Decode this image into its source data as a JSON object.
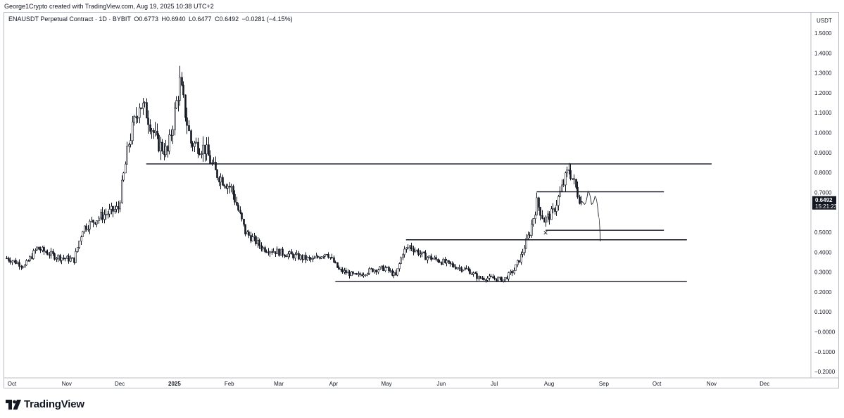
{
  "header": {
    "credit": "George1Crypto created with TradingView.com, Aug 19, 2025 10:38 UTC+2",
    "symbol": "ENAUSDT Perpetual Contract · 1D · BYBIT",
    "ohlc": {
      "open": "O0.6773",
      "high": "H0.6940",
      "low": "L0.6477",
      "close": "C0.6492",
      "change": "−0.0281 (−4.15%)"
    }
  },
  "footer": {
    "brand": "TradingView"
  },
  "price_badge": {
    "price": "0.6492",
    "countdown": "15:21:23",
    "color": "#131722"
  },
  "colors": {
    "candle": "#131722",
    "line": "#131722",
    "grid": "#f0f3fa",
    "axis_text": "#131722"
  },
  "icons": [
    "tradingview-logo-icon"
  ],
  "chart_data": {
    "type": "candlestick",
    "title": "ENAUSDT Perpetual Contract · 1D · BYBIT",
    "xlabel": "",
    "ylabel": "",
    "y_unit": "USDT",
    "ylim": [
      -0.2,
      1.5
    ],
    "y_ticks": [
      "1.5000",
      "1.4000",
      "1.3000",
      "1.2000",
      "1.1000",
      "1.0000",
      "0.9000",
      "0.8000",
      "0.7000",
      "0.5000",
      "0.4000",
      "0.3000",
      "0.2000",
      "0.1000",
      "−0.0000",
      "−0.1000",
      "−0.2000"
    ],
    "y_tick_values": [
      1.5,
      1.4,
      1.3,
      1.2,
      1.1,
      1.0,
      0.9,
      0.8,
      0.7,
      0.5,
      0.4,
      0.3,
      0.2,
      0.1,
      0.0,
      -0.1,
      -0.2
    ],
    "x_ticks": [
      "Oct",
      "Nov",
      "Dec",
      "2025",
      "Feb",
      "Mar",
      "Apr",
      "May",
      "Jun",
      "Jul",
      "Aug",
      "Sep",
      "Oct",
      "Nov",
      "Dec"
    ],
    "x_tick_dates": [
      "2024-10-01",
      "2024-11-01",
      "2024-12-01",
      "2025-01-01",
      "2025-02-01",
      "2025-03-01",
      "2025-04-01",
      "2025-05-01",
      "2025-06-01",
      "2025-07-01",
      "2025-08-01",
      "2025-09-01",
      "2025-10-01",
      "2025-11-01",
      "2025-12-01"
    ],
    "grid": false,
    "last_price": 0.6492,
    "price_path": [
      [
        "2024-09-28",
        0.37
      ],
      [
        "2024-10-08",
        0.33
      ],
      [
        "2024-10-15",
        0.42
      ],
      [
        "2024-10-25",
        0.38
      ],
      [
        "2024-11-05",
        0.36
      ],
      [
        "2024-11-10",
        0.52
      ],
      [
        "2024-11-20",
        0.58
      ],
      [
        "2024-11-30",
        0.62
      ],
      [
        "2024-12-06",
        0.95
      ],
      [
        "2024-12-12",
        1.15
      ],
      [
        "2024-12-16",
        1.1
      ],
      [
        "2024-12-22",
        0.95
      ],
      [
        "2024-12-28",
        0.9
      ],
      [
        "2025-01-04",
        1.25
      ],
      [
        "2025-01-10",
        0.95
      ],
      [
        "2025-01-18",
        0.92
      ],
      [
        "2025-01-24",
        0.8
      ],
      [
        "2025-02-02",
        0.72
      ],
      [
        "2025-02-10",
        0.5
      ],
      [
        "2025-02-20",
        0.42
      ],
      [
        "2025-03-01",
        0.4
      ],
      [
        "2025-03-10",
        0.38
      ],
      [
        "2025-03-20",
        0.36
      ],
      [
        "2025-03-28",
        0.4
      ],
      [
        "2025-04-04",
        0.31
      ],
      [
        "2025-04-14",
        0.28
      ],
      [
        "2025-04-22",
        0.31
      ],
      [
        "2025-04-30",
        0.32
      ],
      [
        "2025-05-06",
        0.28
      ],
      [
        "2025-05-10",
        0.4
      ],
      [
        "2025-05-14",
        0.43
      ],
      [
        "2025-05-22",
        0.38
      ],
      [
        "2025-05-30",
        0.36
      ],
      [
        "2025-06-08",
        0.33
      ],
      [
        "2025-06-16",
        0.31
      ],
      [
        "2025-06-22",
        0.27
      ],
      [
        "2025-06-30",
        0.27
      ],
      [
        "2025-07-06",
        0.26
      ],
      [
        "2025-07-12",
        0.31
      ],
      [
        "2025-07-16",
        0.38
      ],
      [
        "2025-07-21",
        0.5
      ],
      [
        "2025-07-25",
        0.65
      ],
      [
        "2025-07-29",
        0.56
      ],
      [
        "2025-08-03",
        0.6
      ],
      [
        "2025-08-08",
        0.72
      ],
      [
        "2025-08-12",
        0.82
      ],
      [
        "2025-08-16",
        0.72
      ],
      [
        "2025-08-19",
        0.6492
      ]
    ],
    "horizontal_levels": [
      {
        "from": "2024-12-16",
        "to": "2025-11-01",
        "price": 0.843
      },
      {
        "from": "2025-07-25",
        "to": "2025-10-05",
        "price": 0.703
      },
      {
        "from": "2025-07-30",
        "to": "2025-10-05",
        "price": 0.51
      },
      {
        "from": "2025-05-12",
        "to": "2025-10-18",
        "price": 0.462
      },
      {
        "from": "2025-04-02",
        "to": "2025-10-18",
        "price": 0.252
      }
    ],
    "projection": [
      [
        "2025-08-19",
        0.655
      ],
      [
        "2025-08-21",
        0.64
      ],
      [
        "2025-08-23",
        0.705
      ],
      [
        "2025-08-25",
        0.64
      ],
      [
        "2025-08-27",
        0.68
      ],
      [
        "2025-08-29",
        0.58
      ],
      [
        "2025-08-30",
        0.455
      ]
    ],
    "marker": {
      "date": "2025-07-30",
      "price": 0.485,
      "label": "✕"
    }
  }
}
